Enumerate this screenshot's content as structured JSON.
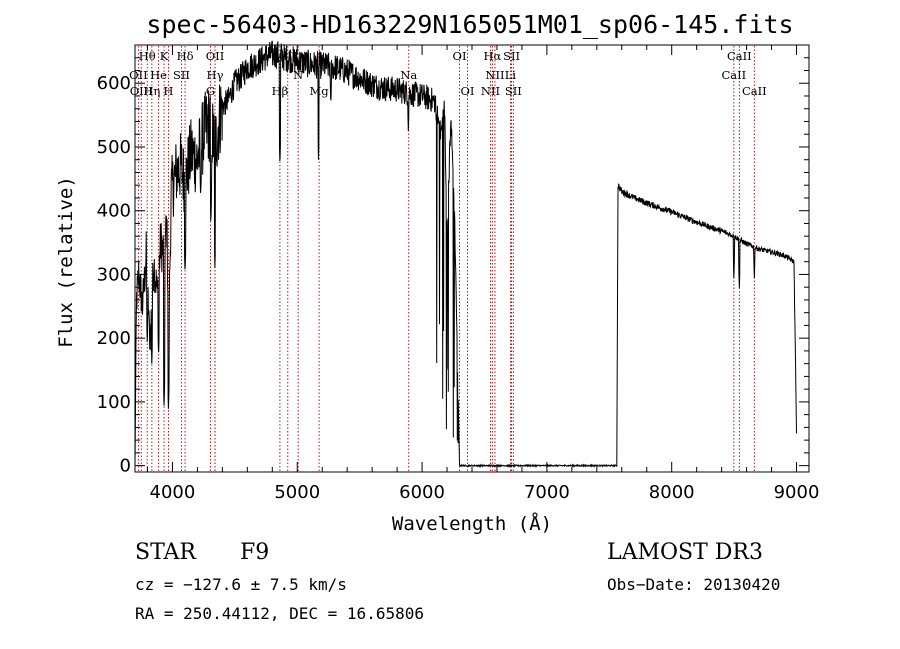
{
  "chart_data": {
    "type": "line",
    "title": "spec-56403-HD163229N165051M01_sp06-145.fits",
    "xlabel": "Wavelength (Å)",
    "ylabel": "Flux (relative)",
    "xlim": [
      3700,
      9100
    ],
    "ylim": [
      -10,
      660
    ],
    "xticks": [
      4000,
      5000,
      6000,
      7000,
      8000,
      9000
    ],
    "yticks": [
      0,
      100,
      200,
      300,
      400,
      500,
      600
    ],
    "line_color": "#000000",
    "marker_color": "#b00000",
    "spectrum_anchors": [
      [
        3700,
        0
      ],
      [
        3712,
        260
      ],
      [
        3730,
        300
      ],
      [
        3760,
        250
      ],
      [
        3790,
        330
      ],
      [
        3820,
        190
      ],
      [
        3850,
        320
      ],
      [
        3880,
        270
      ],
      [
        3905,
        350
      ],
      [
        3935,
        330
      ],
      [
        3955,
        380
      ],
      [
        3970,
        200
      ],
      [
        3990,
        430
      ],
      [
        4030,
        460
      ],
      [
        4070,
        470
      ],
      [
        4100,
        445
      ],
      [
        4150,
        490
      ],
      [
        4200,
        480
      ],
      [
        4250,
        520
      ],
      [
        4300,
        540
      ],
      [
        4340,
        500
      ],
      [
        4390,
        560
      ],
      [
        4450,
        575
      ],
      [
        4500,
        600
      ],
      [
        4550,
        610
      ],
      [
        4600,
        625
      ],
      [
        4650,
        630
      ],
      [
        4700,
        635
      ],
      [
        4750,
        642
      ],
      [
        4800,
        645
      ],
      [
        4850,
        645
      ],
      [
        4900,
        640
      ],
      [
        5000,
        635
      ],
      [
        5100,
        630
      ],
      [
        5200,
        628
      ],
      [
        5300,
        625
      ],
      [
        5400,
        618
      ],
      [
        5500,
        608
      ],
      [
        5600,
        598
      ],
      [
        5700,
        592
      ],
      [
        5800,
        590
      ],
      [
        5900,
        584
      ],
      [
        6000,
        580
      ],
      [
        6100,
        572
      ],
      [
        6150,
        520
      ],
      [
        6180,
        560
      ],
      [
        6200,
        350
      ],
      [
        6230,
        550
      ],
      [
        6260,
        400
      ],
      [
        6290,
        100
      ],
      [
        6300,
        0
      ],
      [
        7000,
        0
      ],
      [
        7500,
        0
      ],
      [
        7560,
        0
      ],
      [
        7570,
        440
      ],
      [
        7600,
        430
      ],
      [
        7700,
        420
      ],
      [
        7800,
        412
      ],
      [
        7900,
        405
      ],
      [
        8000,
        398
      ],
      [
        8100,
        390
      ],
      [
        8200,
        382
      ],
      [
        8300,
        375
      ],
      [
        8400,
        368
      ],
      [
        8500,
        360
      ],
      [
        8600,
        348
      ],
      [
        8700,
        340
      ],
      [
        8800,
        335
      ],
      [
        8900,
        330
      ],
      [
        8980,
        320
      ],
      [
        9000,
        50
      ]
    ],
    "absorption_dips": [
      [
        3798,
        190
      ],
      [
        3835,
        160
      ],
      [
        3889,
        170
      ],
      [
        3933,
        90
      ],
      [
        3968,
        85
      ],
      [
        4101,
        300
      ],
      [
        4226,
        420
      ],
      [
        4308,
        380
      ],
      [
        4340,
        310
      ],
      [
        4861,
        470
      ],
      [
        5170,
        480
      ],
      [
        5269,
        565
      ],
      [
        5890,
        525
      ],
      [
        6563,
        0
      ],
      [
        8498,
        290
      ],
      [
        8542,
        275
      ],
      [
        8662,
        290
      ]
    ],
    "line_markers": [
      {
        "label": "Hθ",
        "wl": 3798,
        "row": 0
      },
      {
        "label": "K",
        "wl": 3933,
        "row": 0
      },
      {
        "label": "Hδ",
        "wl": 4101,
        "row": 0
      },
      {
        "label": "OII",
        "wl": 4341,
        "row": 0
      },
      {
        "label": "GII",
        "wl": 4924,
        "row": 0
      },
      {
        "label": "OI",
        "wl": 6300,
        "row": 0
      },
      {
        "label": "Hα",
        "wl": 6563,
        "row": 0
      },
      {
        "label": "SII",
        "wl": 6717,
        "row": 0
      },
      {
        "label": "CaII",
        "wl": 8542,
        "row": 0
      },
      {
        "label": "OII",
        "wl": 3727,
        "row": 1
      },
      {
        "label": "He",
        "wl": 3889,
        "row": 1
      },
      {
        "label": "SII",
        "wl": 4072,
        "row": 1
      },
      {
        "label": "Hγ",
        "wl": 4341,
        "row": 1
      },
      {
        "label": "N",
        "wl": 5007,
        "row": 1
      },
      {
        "label": "Na",
        "wl": 5893,
        "row": 1
      },
      {
        "label": "NII",
        "wl": 6584,
        "row": 1
      },
      {
        "label": "Li",
        "wl": 6708,
        "row": 1
      },
      {
        "label": "CaII",
        "wl": 8498,
        "row": 1
      },
      {
        "label": "OIII",
        "wl": 3750,
        "row": 2
      },
      {
        "label": "Hη",
        "wl": 3835,
        "row": 2
      },
      {
        "label": "H",
        "wl": 3968,
        "row": 2
      },
      {
        "label": "G",
        "wl": 4305,
        "row": 2
      },
      {
        "label": "Hβ",
        "wl": 4861,
        "row": 2
      },
      {
        "label": "Mg",
        "wl": 5175,
        "row": 2
      },
      {
        "label": "OI",
        "wl": 6364,
        "row": 2
      },
      {
        "label": "NII",
        "wl": 6548,
        "row": 2
      },
      {
        "label": "SII",
        "wl": 6731,
        "row": 2
      },
      {
        "label": "CaII",
        "wl": 8662,
        "row": 2
      }
    ]
  },
  "info": {
    "object_class": "STAR",
    "subclass": "F9",
    "survey": "LAMOST DR3",
    "cz": "cz = −127.6 ± 7.5 km/s",
    "obs_date": "Obs−Date: 20130420",
    "coords": "RA = 250.44112, DEC =  16.65806"
  }
}
